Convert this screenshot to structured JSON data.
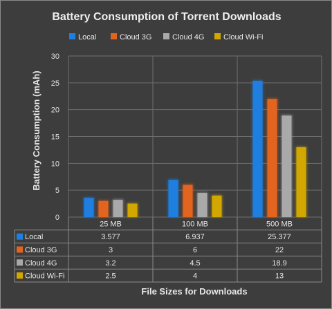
{
  "chart_data": {
    "type": "bar",
    "title": "Battery Consumption of Torrent Downloads",
    "xlabel": "File Sizes for Downloads",
    "ylabel": "Battery Consumption  (mAh)",
    "categories": [
      "25 MB",
      "100 MB",
      "500 MB"
    ],
    "series": [
      {
        "name": "Local",
        "color": "#1e7fe0",
        "values": [
          3.577,
          6.937,
          25.377
        ],
        "labels": [
          "3.577",
          "6.937",
          "25.377"
        ]
      },
      {
        "name": "Cloud 3G",
        "color": "#e3641e",
        "values": [
          3,
          6,
          22
        ],
        "labels": [
          "3",
          "6",
          "22"
        ]
      },
      {
        "name": "Cloud 4G",
        "color": "#a9a9a9",
        "values": [
          3.2,
          4.5,
          18.9
        ],
        "labels": [
          "3.2",
          "4.5",
          "18.9"
        ]
      },
      {
        "name": "Cloud Wi-Fi",
        "color": "#d2a800",
        "values": [
          2.5,
          4,
          13
        ],
        "labels": [
          "2.5",
          "4",
          "13"
        ]
      }
    ],
    "ylim": [
      0,
      30
    ],
    "yticks": [
      "0",
      "5",
      "10",
      "15",
      "20",
      "25",
      "30"
    ],
    "grid": true,
    "legend": "top-center",
    "data_table": true
  }
}
